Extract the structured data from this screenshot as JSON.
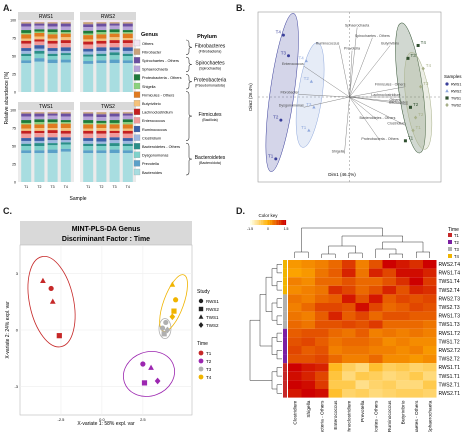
{
  "panels": {
    "A": {
      "letter": "A.",
      "ylabel": "Relative abundance [%]",
      "xlabel": "Sample",
      "facets": [
        "RWS1",
        "RWS2",
        "TWS1",
        "TWS2"
      ],
      "xticks": [
        "T1",
        "T2",
        "T3",
        "T4"
      ],
      "yticks": [
        "100",
        "75",
        "50",
        "25",
        "0"
      ],
      "legend_title": "Genus",
      "genera": [
        {
          "name": "Others",
          "color": "#f2e6f2"
        },
        {
          "name": "Fibrobacter",
          "color": "#c8a27a"
        },
        {
          "name": "Spirochaetes - Others",
          "color": "#6b4fa0"
        },
        {
          "name": "Sphaerochaeta",
          "color": "#b6a2d8"
        },
        {
          "name": "Proteobacteria - Others",
          "color": "#1e7a3a"
        },
        {
          "name": "Shigella",
          "color": "#8bd17c"
        },
        {
          "name": "Firmicutes - Others",
          "color": "#e07b20"
        },
        {
          "name": "Butyrivibrio",
          "color": "#f5c27a"
        },
        {
          "name": "Lachnoclostridium",
          "color": "#c42020"
        },
        {
          "name": "Enterococcus",
          "color": "#f19a9a"
        },
        {
          "name": "Ruminococcus",
          "color": "#3b5fa8"
        },
        {
          "name": "Clostridium",
          "color": "#9db8e0"
        },
        {
          "name": "Bacteroidetes - Others",
          "color": "#2a8f88"
        },
        {
          "name": "Dysgonomonas",
          "color": "#7fd1cb"
        },
        {
          "name": "Prevotella",
          "color": "#5aa0c8"
        },
        {
          "name": "Bacteroides",
          "color": "#a8dde0"
        }
      ],
      "phylum_title": "Phylum",
      "phyla": [
        {
          "name": "Fibrobacteres",
          "sub": "(Fibrobacteria)"
        },
        {
          "name": "Spirochaetes",
          "sub": "(Spirochaetia)"
        },
        {
          "name": "Proteobacteria",
          "sub": "(Pseudomonadota)"
        },
        {
          "name": "Firmicutes",
          "sub": "(Bacillota)"
        },
        {
          "name": "Bacteroidetes",
          "sub": "(Bacteroidota)"
        }
      ],
      "abundance": {
        "RWS1": [
          [
            3,
            2,
            4,
            5,
            4,
            2,
            6,
            3,
            4,
            6,
            4,
            4,
            3,
            6,
            4,
            40
          ],
          [
            3,
            2,
            3,
            5,
            3,
            2,
            5,
            4,
            3,
            5,
            5,
            3,
            4,
            6,
            5,
            42
          ],
          [
            3,
            2,
            4,
            4,
            4,
            3,
            6,
            3,
            4,
            6,
            4,
            4,
            3,
            5,
            5,
            40
          ],
          [
            3,
            2,
            4,
            5,
            3,
            2,
            5,
            4,
            4,
            6,
            5,
            3,
            3,
            6,
            4,
            41
          ]
        ],
        "RWS2": [
          [
            3,
            3,
            4,
            5,
            4,
            2,
            6,
            3,
            4,
            6,
            4,
            4,
            3,
            6,
            4,
            39
          ],
          [
            3,
            2,
            4,
            5,
            3,
            3,
            6,
            3,
            4,
            5,
            5,
            4,
            3,
            6,
            4,
            40
          ],
          [
            3,
            2,
            3,
            5,
            4,
            2,
            5,
            4,
            4,
            6,
            4,
            3,
            4,
            6,
            5,
            40
          ],
          [
            3,
            2,
            4,
            5,
            3,
            2,
            6,
            3,
            4,
            6,
            5,
            4,
            3,
            6,
            4,
            40
          ]
        ],
        "TWS1": [
          [
            3,
            2,
            4,
            5,
            4,
            2,
            6,
            3,
            4,
            6,
            4,
            4,
            3,
            6,
            4,
            40
          ],
          [
            3,
            2,
            4,
            4,
            4,
            3,
            5,
            4,
            3,
            6,
            5,
            3,
            4,
            6,
            4,
            40
          ],
          [
            3,
            2,
            3,
            5,
            4,
            2,
            6,
            3,
            4,
            6,
            4,
            4,
            3,
            6,
            5,
            40
          ],
          [
            3,
            2,
            4,
            5,
            3,
            2,
            6,
            4,
            4,
            5,
            4,
            3,
            3,
            6,
            4,
            42
          ]
        ],
        "TWS2": [
          [
            3,
            2,
            4,
            5,
            4,
            2,
            6,
            3,
            4,
            6,
            4,
            4,
            3,
            6,
            4,
            40
          ],
          [
            3,
            3,
            4,
            5,
            3,
            2,
            5,
            4,
            4,
            6,
            5,
            3,
            3,
            6,
            4,
            40
          ],
          [
            3,
            2,
            4,
            5,
            4,
            2,
            6,
            3,
            3,
            6,
            4,
            4,
            4,
            5,
            5,
            40
          ],
          [
            3,
            2,
            3,
            5,
            4,
            3,
            6,
            3,
            4,
            6,
            4,
            4,
            3,
            6,
            4,
            40
          ]
        ]
      }
    },
    "B": {
      "letter": "B.",
      "xlabel": "Dim1 (46.1%)",
      "ylabel": "Dim2 (26.4%)",
      "legend_title": "Samples",
      "groups": [
        {
          "name": "RWS1",
          "color": "#3a3f9a"
        },
        {
          "name": "RWS2",
          "color": "#8fa8dc"
        },
        {
          "name": "TWS1",
          "color": "#2f4f2f"
        },
        {
          "name": "TWS2",
          "color": "#a8b08a"
        }
      ],
      "points": [
        {
          "label": "T4",
          "x": -2.6,
          "y": 2.4,
          "g": 0
        },
        {
          "label": "T3",
          "x": -2.4,
          "y": 1.6,
          "g": 0
        },
        {
          "label": "T2",
          "x": -2.7,
          "y": -0.9,
          "g": 0
        },
        {
          "label": "T1",
          "x": -2.9,
          "y": -2.4,
          "g": 0
        },
        {
          "label": "T4",
          "x": -1.7,
          "y": 1.4,
          "g": 1
        },
        {
          "label": "T2",
          "x": -1.5,
          "y": 0.6,
          "g": 1
        },
        {
          "label": "T3",
          "x": -1.4,
          "y": -0.4,
          "g": 1
        },
        {
          "label": "T1",
          "x": -1.6,
          "y": -1.3,
          "g": 1
        },
        {
          "label": "T4",
          "x": 2.7,
          "y": 2.0,
          "g": 2
        },
        {
          "label": "T3",
          "x": 2.3,
          "y": 1.5,
          "g": 2
        },
        {
          "label": "T2",
          "x": 2.4,
          "y": -0.4,
          "g": 2
        },
        {
          "label": "T1",
          "x": 2.2,
          "y": -1.7,
          "g": 2
        },
        {
          "label": "T4",
          "x": 2.9,
          "y": 1.1,
          "g": 3
        },
        {
          "label": "T3",
          "x": 2.8,
          "y": 0.4,
          "g": 3
        },
        {
          "label": "T2",
          "x": 2.6,
          "y": -0.8,
          "g": 3
        },
        {
          "label": "T1",
          "x": 2.5,
          "y": -1.3,
          "g": 3
        }
      ],
      "vectors": [
        {
          "label": "Sphaerochaeta",
          "x": 0.3,
          "y": 2.7
        },
        {
          "label": "Spirochaetes - Others",
          "x": 0.9,
          "y": 2.3
        },
        {
          "label": "Butyrivibrio",
          "x": 1.6,
          "y": 2.0
        },
        {
          "label": "Ruminococcus",
          "x": -0.4,
          "y": 2.0
        },
        {
          "label": "Prevotella",
          "x": 0.1,
          "y": 1.8
        },
        {
          "label": "Enterococcus",
          "x": -1.8,
          "y": 1.2
        },
        {
          "label": "Fibrobacter",
          "x": -2.0,
          "y": 0.1
        },
        {
          "label": "Dysgonomonas",
          "x": -1.8,
          "y": -0.4
        },
        {
          "label": "Firmicutes - Others",
          "x": 2.2,
          "y": 0.4
        },
        {
          "label": "Lachnoclostridium",
          "x": 2.0,
          "y": 0.0
        },
        {
          "label": "Bacteroides",
          "x": 2.3,
          "y": -0.3
        },
        {
          "label": "Others",
          "x": 2.0,
          "y": -0.2
        },
        {
          "label": "Bacteroidetes - Others",
          "x": 1.1,
          "y": -0.9
        },
        {
          "label": "Clostridium",
          "x": 2.2,
          "y": -1.1
        },
        {
          "label": "Proteobacteria - Others",
          "x": 1.2,
          "y": -1.7
        },
        {
          "label": "Shigella",
          "x": -0.2,
          "y": -2.2
        }
      ]
    },
    "C": {
      "letter": "C.",
      "title_line1": "MINT-PLS-DA Genus",
      "title_line2": "Discriminant Factor : Time",
      "xlabel": "X-variate 1: 58% expl. var",
      "ylabel": "X-variate 2: 24% expl. var",
      "xticks": [
        "-2.5",
        "0.0",
        "2.5"
      ],
      "yticks": [
        "3",
        "0",
        "-3"
      ],
      "study_title": "Study",
      "studies": [
        {
          "name": "RWS1",
          "shape": "circle"
        },
        {
          "name": "RWS2",
          "shape": "square"
        },
        {
          "name": "TWS1",
          "shape": "triangle"
        },
        {
          "name": "TWS2",
          "shape": "diamond"
        }
      ],
      "time_title": "Time",
      "times": [
        {
          "name": "T1",
          "color": "#c62828"
        },
        {
          "name": "T2",
          "color": "#9c27b0"
        },
        {
          "name": "T3",
          "color": "#b0b0b0"
        },
        {
          "name": "T4",
          "color": "#f0b400"
        }
      ],
      "points": [
        {
          "x": -3.6,
          "y": 2.6,
          "t": 0,
          "s": "triangle"
        },
        {
          "x": -3.1,
          "y": 2.2,
          "t": 0,
          "s": "circle"
        },
        {
          "x": -3.0,
          "y": 1.5,
          "t": 0,
          "s": "triangle"
        },
        {
          "x": -2.6,
          "y": -0.3,
          "t": 0,
          "s": "square"
        },
        {
          "x": 2.5,
          "y": -1.8,
          "t": 1,
          "s": "circle"
        },
        {
          "x": 3.0,
          "y": -2.0,
          "t": 1,
          "s": "triangle"
        },
        {
          "x": 2.6,
          "y": -2.8,
          "t": 1,
          "s": "square"
        },
        {
          "x": 3.4,
          "y": -2.7,
          "t": 1,
          "s": "diamond"
        },
        {
          "x": 3.7,
          "y": 0.1,
          "t": 2,
          "s": "circle"
        },
        {
          "x": 3.9,
          "y": 0.4,
          "t": 2,
          "s": "circle"
        },
        {
          "x": 3.8,
          "y": -0.2,
          "t": 2,
          "s": "square"
        },
        {
          "x": 4.0,
          "y": 0.0,
          "t": 2,
          "s": "diamond"
        },
        {
          "x": 4.3,
          "y": 2.4,
          "t": 3,
          "s": "triangle"
        },
        {
          "x": 4.5,
          "y": 1.6,
          "t": 3,
          "s": "circle"
        },
        {
          "x": 4.4,
          "y": 1.0,
          "t": 3,
          "s": "square"
        },
        {
          "x": 4.3,
          "y": 0.7,
          "t": 3,
          "s": "diamond"
        }
      ]
    },
    "D": {
      "letter": "D.",
      "colorkey_title": "Color key",
      "colorkey_ticks": [
        "-1.5",
        "0",
        "1.5"
      ],
      "time_title": "Time",
      "times": [
        {
          "name": "T1",
          "color": "#c62828"
        },
        {
          "name": "T2",
          "color": "#7b1fa2"
        },
        {
          "name": "T3",
          "color": "#b0b0b0"
        },
        {
          "name": "T4",
          "color": "#f0b400"
        }
      ],
      "row_labels": [
        "RWS2.T4",
        "RWS1.T4",
        "TWS1.T4",
        "TWS2.T4",
        "RWS2.T3",
        "TWS2.T3",
        "RWS1.T3",
        "TWS1.T3",
        "RWS1.T2",
        "TWS1.T2",
        "RWS2.T2",
        "TWS2.T2",
        "RWS1.T1",
        "TWS1.T1",
        "TWS2.T1",
        "RWS2.T1"
      ],
      "row_time": [
        3,
        3,
        3,
        3,
        2,
        2,
        2,
        2,
        1,
        1,
        1,
        1,
        0,
        0,
        0,
        0
      ],
      "col_labels": [
        "Clostridium",
        "Shigella",
        "Proteobacteria - Others",
        "Enterococcus",
        "Lachnoclostridium",
        "Prevotella",
        "Firmicutes - Others",
        "Ruminococcus",
        "Butyrivibrio",
        "Spirochaetes - Others",
        "Sphaerochaeta"
      ],
      "values": [
        [
          0.2,
          0.3,
          0.4,
          0.6,
          1.0,
          0.4,
          0.8,
          1.5,
          1.3,
          1.1,
          1.5
        ],
        [
          0.1,
          0.2,
          0.5,
          0.7,
          1.2,
          0.5,
          1.2,
          0.9,
          1.4,
          1.4,
          1.2
        ],
        [
          0.4,
          0.3,
          0.6,
          0.6,
          0.8,
          0.6,
          0.6,
          0.8,
          1.1,
          1.5,
          1.0
        ],
        [
          0.3,
          0.4,
          0.5,
          1.1,
          0.9,
          0.6,
          0.8,
          1.2,
          0.8,
          1.2,
          1.1
        ],
        [
          0.5,
          0.4,
          0.6,
          0.7,
          1.3,
          0.8,
          1.3,
          0.7,
          0.9,
          0.8,
          0.9
        ],
        [
          0.4,
          0.6,
          0.9,
          0.9,
          0.8,
          1.4,
          0.9,
          0.6,
          0.7,
          0.9,
          0.8
        ],
        [
          0.5,
          0.4,
          0.7,
          1.2,
          0.7,
          0.9,
          0.6,
          0.8,
          0.8,
          0.7,
          0.7
        ],
        [
          0.6,
          0.5,
          0.8,
          0.8,
          0.9,
          0.8,
          1.0,
          0.6,
          0.6,
          0.6,
          0.5
        ],
        [
          0.7,
          0.8,
          0.8,
          0.6,
          0.5,
          0.7,
          0.4,
          0.5,
          0.4,
          0.5,
          0.4
        ],
        [
          0.8,
          0.9,
          0.7,
          0.5,
          0.6,
          0.6,
          0.5,
          0.3,
          0.4,
          0.3,
          0.3
        ],
        [
          0.9,
          0.7,
          0.8,
          0.4,
          0.5,
          0.5,
          0.4,
          0.4,
          0.3,
          0.4,
          0.2
        ],
        [
          0.8,
          0.8,
          0.9,
          0.6,
          0.4,
          0.4,
          0.6,
          0.3,
          0.3,
          0.2,
          0.3
        ],
        [
          1.5,
          1.3,
          1.2,
          -0.2,
          -0.6,
          -0.8,
          -0.3,
          -0.6,
          -0.5,
          -0.7,
          -0.6
        ],
        [
          1.4,
          1.2,
          0.9,
          -0.4,
          -0.8,
          -0.5,
          -0.6,
          -0.8,
          -0.7,
          -0.5,
          -0.8
        ],
        [
          1.5,
          1.4,
          1.0,
          -0.5,
          -0.5,
          -0.9,
          -0.7,
          -0.6,
          -0.8,
          -0.8,
          -0.5
        ],
        [
          1.3,
          1.5,
          1.4,
          -0.3,
          -0.7,
          -0.6,
          -0.8,
          -0.7,
          -0.6,
          -0.6,
          -0.7
        ]
      ]
    }
  }
}
